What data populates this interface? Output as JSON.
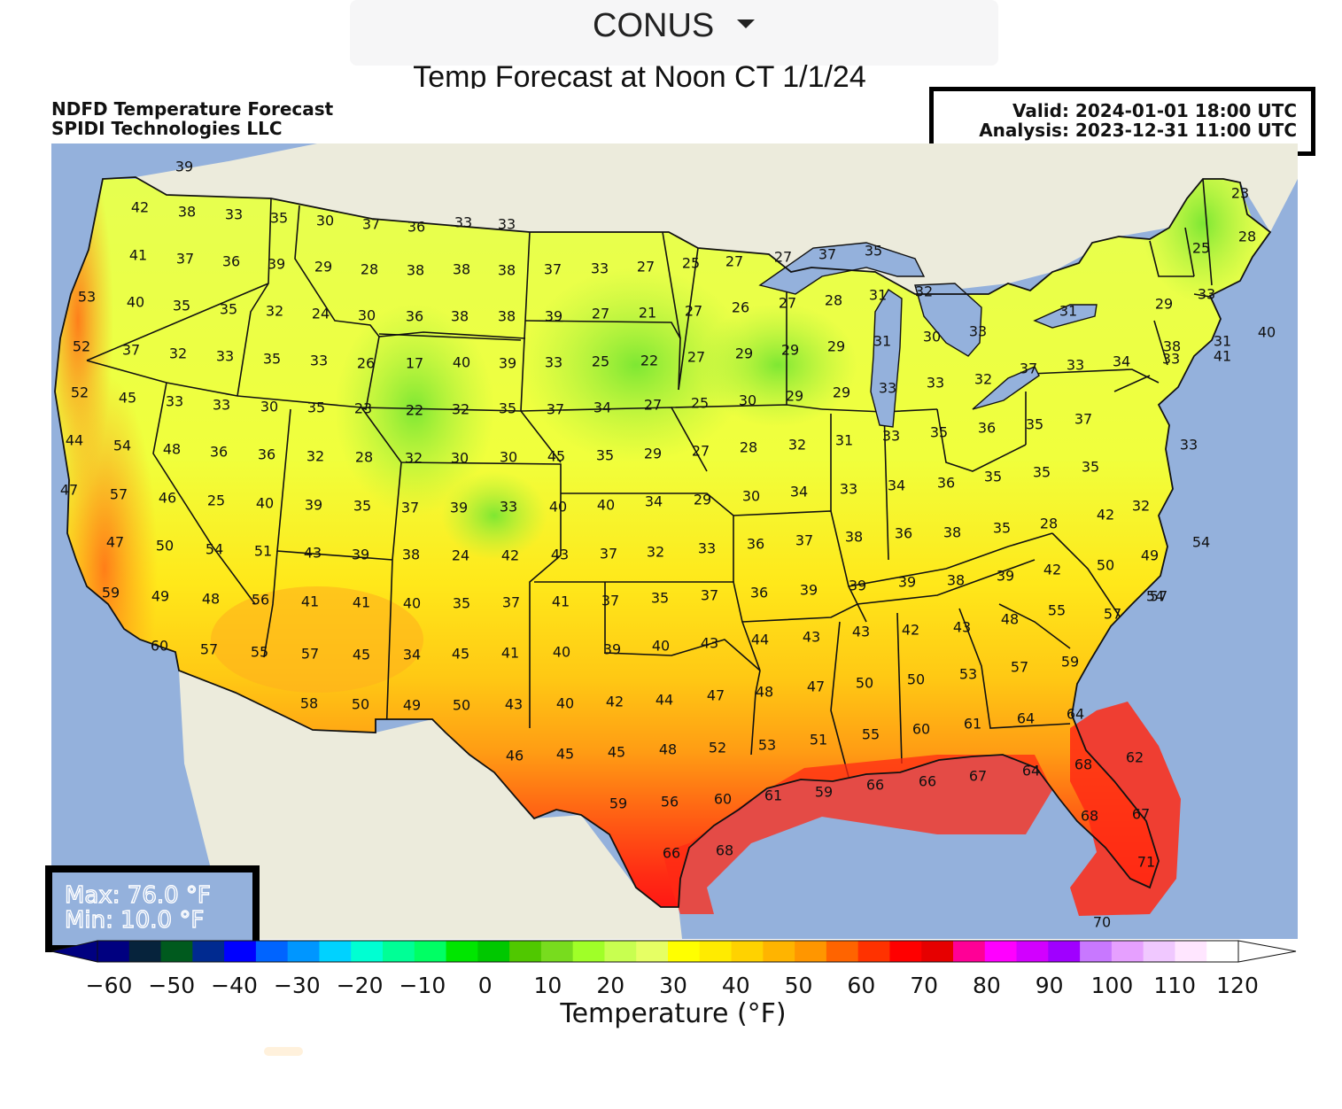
{
  "region_selector": {
    "label": "CONUS",
    "icon": "caret-down-icon"
  },
  "page_title": "Temp Forecast at Noon CT 1/1/24",
  "map": {
    "product_title_line1": "NDFD Temperature Forecast",
    "product_title_line2": "SPIDI Technologies LLC",
    "valid": "Valid: 2024-01-01 18:00 UTC",
    "analysis": "Analysis: 2023-12-31 11:00 UTC",
    "max": "Max: 76.0 °F",
    "min": "Min: 10.0 °F",
    "colors": {
      "ocean": "#94b1dc",
      "land_outside": "#ecebdc",
      "border": "#111111"
    },
    "station_values": [
      "39",
      "42",
      "38",
      "33",
      "35",
      "30",
      "37",
      "36",
      "33",
      "33",
      "41",
      "37",
      "36",
      "39",
      "29",
      "28",
      "38",
      "38",
      "38",
      "37",
      "33",
      "27",
      "25",
      "27",
      "27",
      "37",
      "35",
      "23",
      "25",
      "28",
      "53",
      "40",
      "35",
      "35",
      "32",
      "24",
      "30",
      "36",
      "38",
      "38",
      "39",
      "27",
      "21",
      "27",
      "26",
      "27",
      "28",
      "31",
      "32",
      "31",
      "29",
      "33",
      "52",
      "37",
      "32",
      "33",
      "35",
      "33",
      "26",
      "17",
      "40",
      "39",
      "33",
      "25",
      "22",
      "27",
      "29",
      "29",
      "29",
      "31",
      "30",
      "33",
      "38",
      "31",
      "40",
      "52",
      "45",
      "33",
      "33",
      "30",
      "35",
      "23",
      "22",
      "32",
      "35",
      "37",
      "34",
      "27",
      "25",
      "30",
      "29",
      "29",
      "33",
      "33",
      "32",
      "37",
      "33",
      "34",
      "33",
      "41",
      "44",
      "54",
      "48",
      "36",
      "36",
      "32",
      "28",
      "32",
      "30",
      "30",
      "45",
      "35",
      "29",
      "27",
      "28",
      "32",
      "31",
      "33",
      "35",
      "36",
      "35",
      "37",
      "33",
      "47",
      "57",
      "46",
      "25",
      "40",
      "39",
      "35",
      "37",
      "39",
      "33",
      "40",
      "40",
      "34",
      "29",
      "30",
      "34",
      "33",
      "34",
      "36",
      "35",
      "35",
      "35",
      "32",
      "47",
      "50",
      "54",
      "51",
      "43",
      "39",
      "38",
      "24",
      "42",
      "43",
      "37",
      "32",
      "33",
      "36",
      "37",
      "38",
      "36",
      "38",
      "35",
      "28",
      "42",
      "49",
      "54",
      "59",
      "49",
      "48",
      "56",
      "41",
      "41",
      "40",
      "35",
      "37",
      "41",
      "37",
      "35",
      "37",
      "36",
      "39",
      "39",
      "39",
      "38",
      "39",
      "42",
      "50",
      "54",
      "60",
      "57",
      "55",
      "57",
      "45",
      "34",
      "45",
      "41",
      "40",
      "39",
      "40",
      "43",
      "44",
      "43",
      "43",
      "42",
      "43",
      "48",
      "55",
      "57",
      "57",
      "58",
      "50",
      "49",
      "50",
      "43",
      "40",
      "42",
      "44",
      "47",
      "48",
      "47",
      "50",
      "50",
      "53",
      "57",
      "59",
      "46",
      "45",
      "45",
      "48",
      "52",
      "53",
      "51",
      "55",
      "60",
      "61",
      "64",
      "64",
      "59",
      "56",
      "60",
      "61",
      "59",
      "66",
      "66",
      "67",
      "64",
      "68",
      "62",
      "66",
      "68",
      "68",
      "67",
      "71",
      "70"
    ]
  },
  "colorbar": {
    "ticks": [
      "−60",
      "−50",
      "−40",
      "−30",
      "−20",
      "−10",
      "0",
      "10",
      "20",
      "30",
      "40",
      "50",
      "60",
      "70",
      "80",
      "90",
      "100",
      "110",
      "120"
    ],
    "label": "Temperature (°F)",
    "colors": [
      "#000080",
      "#06233c",
      "#005a1e",
      "#002a90",
      "#0000ff",
      "#0064ff",
      "#0096ff",
      "#00d2ff",
      "#00ffd2",
      "#00ff96",
      "#00ff64",
      "#00e600",
      "#00c800",
      "#50c800",
      "#78dc1e",
      "#a0ff28",
      "#c8ff50",
      "#e6ff64",
      "#ffff00",
      "#ffeb00",
      "#ffd200",
      "#ffb400",
      "#ff9600",
      "#ff6400",
      "#ff3200",
      "#ff0000",
      "#e60000",
      "#ff0096",
      "#ff00ff",
      "#d200ff",
      "#a000ff",
      "#c878ff",
      "#e6a0ff",
      "#f0c8ff",
      "#ffe6ff",
      "#ffffff"
    ]
  }
}
